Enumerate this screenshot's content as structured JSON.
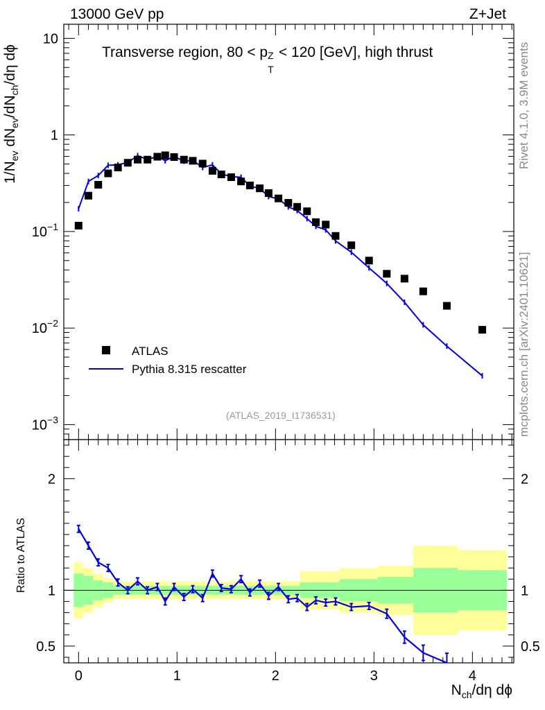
{
  "header": {
    "left": "13000 GeV pp",
    "right": "Z+Jet"
  },
  "plot_title": {
    "prefix": "Transverse region, 80 < p",
    "sup": "Z",
    "sub": "T",
    "suffix": " < 120 [GeV], high thrust"
  },
  "side_labels": {
    "rivet": "Rivet 4.1.0,  3.9M events",
    "source": "mcplots.cern.ch [arXiv:2401.10621]"
  },
  "analysis_id": "(ATLAS_2019_I1736531)",
  "colors": {
    "mc": "#0000dd",
    "data": "#000000",
    "band_inner": "#99ff99",
    "band_outer": "#ffff99"
  },
  "chart_data": [
    {
      "type": "scatter",
      "panel": "main",
      "yscale": "log",
      "ylabel": "1/N_ev dN_ev/dN_ch/dη dϕ",
      "xlabel": "N_ch/dη dϕ",
      "xlim": [
        -0.15,
        4.42
      ],
      "ylim": [
        0.0007,
        14
      ],
      "y_tick_labels": [
        {
          "value": 0.001,
          "base": "10",
          "exp": "−3"
        },
        {
          "value": 0.01,
          "base": "10",
          "exp": "−2"
        },
        {
          "value": 0.1,
          "base": "10",
          "exp": "−1"
        },
        {
          "value": 1,
          "base": "1",
          "exp": ""
        },
        {
          "value": 10,
          "base": "10",
          "exp": ""
        }
      ],
      "legend": {
        "position": "lower-left",
        "entries": [
          "ATLAS",
          "Pythia 8.315 rescatter"
        ]
      },
      "series": [
        {
          "name": "ATLAS",
          "style": "markers",
          "x": [
            0.0,
            0.1,
            0.2,
            0.3,
            0.4,
            0.5,
            0.6,
            0.7,
            0.8,
            0.88,
            0.97,
            1.07,
            1.16,
            1.26,
            1.36,
            1.45,
            1.55,
            1.65,
            1.74,
            1.84,
            1.93,
            2.03,
            2.13,
            2.22,
            2.32,
            2.41,
            2.51,
            2.61,
            2.77,
            2.95,
            3.13,
            3.31,
            3.5,
            3.74,
            4.1
          ],
          "y": [
            0.115,
            0.235,
            0.305,
            0.4,
            0.46,
            0.515,
            0.555,
            0.555,
            0.595,
            0.615,
            0.59,
            0.555,
            0.54,
            0.505,
            0.425,
            0.39,
            0.365,
            0.33,
            0.3,
            0.28,
            0.25,
            0.22,
            0.198,
            0.18,
            0.162,
            0.125,
            0.118,
            0.09,
            0.072,
            0.05,
            0.0365,
            0.0325,
            0.024,
            0.017,
            0.0096
          ]
        },
        {
          "name": "Pythia 8.315 rescatter",
          "style": "line",
          "x": [
            0.0,
            0.1,
            0.2,
            0.3,
            0.4,
            0.5,
            0.6,
            0.7,
            0.8,
            0.88,
            0.97,
            1.07,
            1.16,
            1.26,
            1.36,
            1.45,
            1.55,
            1.65,
            1.74,
            1.84,
            1.93,
            2.03,
            2.13,
            2.22,
            2.32,
            2.41,
            2.51,
            2.61,
            2.77,
            2.95,
            3.13,
            3.31,
            3.5,
            3.74,
            4.1
          ],
          "y": [
            0.172,
            0.33,
            0.38,
            0.485,
            0.49,
            0.52,
            0.61,
            0.555,
            0.6,
            0.54,
            0.6,
            0.535,
            0.545,
            0.46,
            0.49,
            0.395,
            0.37,
            0.365,
            0.295,
            0.28,
            0.23,
            0.218,
            0.18,
            0.165,
            0.136,
            0.113,
            0.104,
            0.08,
            0.061,
            0.042,
            0.029,
            0.0185,
            0.0108,
            0.0065,
            0.0032
          ]
        }
      ]
    },
    {
      "type": "line",
      "panel": "ratio",
      "ylabel": "Ratio to ATLAS",
      "xlabel": "N_ch/dη dϕ",
      "xlim": [
        -0.15,
        4.42
      ],
      "ylim": [
        0.35,
        2.35
      ],
      "y_tick_labels": [
        "0.5",
        "1",
        "2"
      ],
      "x_tick_labels": [
        "0",
        "1",
        "2",
        "3",
        "4"
      ],
      "reference_line": 1,
      "series": [
        {
          "name": "Pythia 8.315 rescatter / ATLAS",
          "x": [
            0.0,
            0.1,
            0.2,
            0.3,
            0.4,
            0.5,
            0.6,
            0.7,
            0.8,
            0.88,
            0.97,
            1.07,
            1.16,
            1.26,
            1.36,
            1.45,
            1.55,
            1.65,
            1.74,
            1.84,
            1.93,
            2.03,
            2.13,
            2.22,
            2.32,
            2.41,
            2.51,
            2.61,
            2.77,
            2.95,
            3.13,
            3.31,
            3.5,
            3.74
          ],
          "y": [
            1.55,
            1.4,
            1.25,
            1.2,
            1.07,
            1.0,
            1.08,
            1.0,
            1.03,
            0.9,
            1.03,
            0.94,
            1.01,
            0.93,
            1.15,
            1.02,
            1.01,
            1.1,
            0.98,
            1.06,
            0.95,
            1.03,
            0.92,
            0.93,
            0.85,
            0.91,
            0.89,
            0.9,
            0.85,
            0.86,
            0.79,
            0.58,
            0.44,
            0.35
          ]
        }
      ],
      "uncertainty_bands": [
        {
          "x_lo": -0.05,
          "x_hi": 0.05,
          "inner": [
            0.85,
            1.15
          ],
          "outer": [
            0.75,
            1.25
          ]
        },
        {
          "x_lo": 0.05,
          "x_hi": 0.15,
          "inner": [
            0.87,
            1.13
          ],
          "outer": [
            0.8,
            1.2
          ]
        },
        {
          "x_lo": 0.15,
          "x_hi": 0.25,
          "inner": [
            0.91,
            1.09
          ],
          "outer": [
            0.85,
            1.15
          ]
        },
        {
          "x_lo": 0.25,
          "x_hi": 0.35,
          "inner": [
            0.93,
            1.07
          ],
          "outer": [
            0.89,
            1.11
          ]
        },
        {
          "x_lo": 0.35,
          "x_hi": 2.25,
          "inner": [
            0.96,
            1.04
          ],
          "outer": [
            0.92,
            1.08
          ]
        },
        {
          "x_lo": 2.25,
          "x_hi": 2.65,
          "inner": [
            0.93,
            1.07
          ],
          "outer": [
            0.83,
            1.17
          ]
        },
        {
          "x_lo": 2.65,
          "x_hi": 3.04,
          "inner": [
            0.9,
            1.1
          ],
          "outer": [
            0.8,
            1.2
          ]
        },
        {
          "x_lo": 3.04,
          "x_hi": 3.4,
          "inner": [
            0.88,
            1.12
          ],
          "outer": [
            0.78,
            1.22
          ]
        },
        {
          "x_lo": 3.4,
          "x_hi": 3.85,
          "inner": [
            0.8,
            1.2
          ],
          "outer": [
            0.6,
            1.4
          ]
        },
        {
          "x_lo": 3.85,
          "x_hi": 4.35,
          "inner": [
            0.82,
            1.18
          ],
          "outer": [
            0.64,
            1.36
          ]
        }
      ]
    }
  ]
}
